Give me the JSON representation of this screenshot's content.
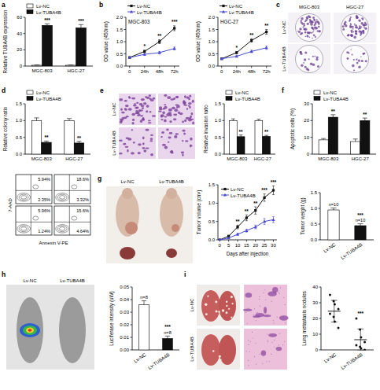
{
  "chart_data": [
    {
      "panel": "a",
      "type": "bar",
      "y_label": "Relative TUBA4B expression",
      "categories": [
        "MGC-803",
        "HGC-27"
      ],
      "series": [
        {
          "name": "Lv-NC",
          "color": "#ffffff",
          "values": [
            1,
            1
          ],
          "errors": [
            0.3,
            0.3
          ]
        },
        {
          "name": "Lv-TUBA4B",
          "color": "#111111",
          "values": [
            50,
            47
          ],
          "errors": [
            2,
            4
          ]
        }
      ],
      "ylim": [
        0,
        60
      ],
      "yticks": [
        0,
        20,
        40,
        60
      ],
      "annotations": [
        "***",
        "***"
      ],
      "legend": "top"
    },
    {
      "panel": "b",
      "type": "line",
      "title": "MGC-803",
      "y_label": "OD value (450nm)",
      "x": [
        0,
        24,
        48,
        72
      ],
      "xlim": [
        -6,
        80
      ],
      "xticks": [
        0,
        {
          "value": 24,
          "label": "24h"
        },
        {
          "value": 48,
          "label": "48h"
        },
        {
          "value": 72,
          "label": "72h"
        }
      ],
      "series": [
        {
          "name": "Lv-NC",
          "color": "#111111",
          "marker": "square",
          "values": [
            0.35,
            0.6,
            1.0,
            1.55
          ],
          "errors": [
            0.02,
            0.05,
            0.08,
            0.1
          ]
        },
        {
          "name": "Lv-TUBA4B",
          "color": "#4b4bd0",
          "marker": "triangle",
          "values": [
            0.35,
            0.48,
            0.55,
            0.72
          ],
          "errors": [
            0.02,
            0.04,
            0.05,
            0.06
          ]
        }
      ],
      "ylim": [
        0,
        2
      ],
      "yticks": [
        {
          "value": 0,
          "label": "0.0"
        },
        {
          "value": 0.5,
          "label": "0.5"
        },
        {
          "value": 1,
          "label": "1.0"
        },
        {
          "value": 1.5,
          "label": "1.5"
        },
        {
          "value": 2,
          "label": "2.0"
        }
      ],
      "annotations": [
        null,
        "*",
        "**",
        "***"
      ],
      "legend": "top"
    },
    {
      "type": "line",
      "title": "HGC-27",
      "y_label": "OD value (450nm)",
      "x": [
        0,
        24,
        48,
        72
      ],
      "xlim": [
        -6,
        80
      ],
      "xticks": [
        0,
        {
          "value": 24,
          "label": "24h"
        },
        {
          "value": 48,
          "label": "48h"
        },
        {
          "value": 72,
          "label": "72h"
        }
      ],
      "series": [
        {
          "name": "Lv-NC",
          "color": "#111111",
          "marker": "square",
          "values": [
            0.3,
            0.55,
            1.05,
            1.4
          ],
          "errors": [
            0.02,
            0.05,
            0.07,
            0.1
          ]
        },
        {
          "name": "Lv-TUBA4B",
          "color": "#4b4bd0",
          "marker": "triangle",
          "values": [
            0.3,
            0.4,
            0.6,
            0.75
          ],
          "errors": [
            0.02,
            0.03,
            0.05,
            0.07
          ]
        }
      ],
      "ylim": [
        0,
        2
      ],
      "yticks": [
        {
          "value": 0,
          "label": "0.0"
        },
        {
          "value": 0.5,
          "label": "0.5"
        },
        {
          "value": 1,
          "label": "1.0"
        },
        {
          "value": 1.5,
          "label": "1.5"
        },
        {
          "value": 2,
          "label": "2.0"
        }
      ],
      "annotations": [
        null,
        "*",
        "**",
        "**"
      ],
      "legend": "top"
    },
    {
      "panel": "d",
      "type": "bar",
      "y_label": "Relative colony ratio",
      "categories": [
        "MGC-803",
        "HGC-27"
      ],
      "series": [
        {
          "name": "Lv-NC",
          "color": "#ffffff",
          "values": [
            1,
            1
          ],
          "errors": [
            0.08,
            0.06
          ]
        },
        {
          "name": "Lv-TUBA4B",
          "color": "#111111",
          "values": [
            0.35,
            0.33
          ],
          "errors": [
            0.04,
            0.05
          ]
        }
      ],
      "ylim": [
        0,
        1.5
      ],
      "yticks": [
        {
          "value": 0,
          "label": "0.0"
        },
        {
          "value": 0.5,
          "label": "0.5"
        },
        {
          "value": 1,
          "label": "1.0"
        },
        {
          "value": 1.5,
          "label": "1.5"
        }
      ],
      "annotations": [
        "**",
        "**"
      ],
      "legend": "top"
    },
    {
      "type": "bar",
      "y_label": "Relative invasion ratio",
      "categories": [
        "MGC-803",
        "HGC-27"
      ],
      "series": [
        {
          "name": "Lv-NC",
          "color": "#ffffff",
          "values": [
            1,
            1
          ],
          "errors": [
            0.05,
            0.04
          ]
        },
        {
          "name": "Lv-TUBA4B",
          "color": "#111111",
          "values": [
            0.52,
            0.53
          ],
          "errors": [
            0.05,
            0.03
          ]
        }
      ],
      "ylim": [
        0,
        1.5
      ],
      "yticks": [
        {
          "value": 0,
          "label": "0.0"
        },
        {
          "value": 0.5,
          "label": "0.5"
        },
        {
          "value": 1,
          "label": "1.0"
        },
        {
          "value": 1.5,
          "label": "1.5"
        }
      ],
      "annotations": [
        "**",
        "**"
      ],
      "legend": "top"
    },
    {
      "panel": "f",
      "type": "bar",
      "y_label": "Apoptotic cells (%)",
      "categories": [
        "MGC-803",
        "HGC-27"
      ],
      "series": [
        {
          "name": "Lv-NC",
          "color": "#ffffff",
          "values": [
            8.5,
            7.5
          ],
          "errors": [
            0.8,
            1.5
          ]
        },
        {
          "name": "Lv-TUBA4B",
          "color": "#111111",
          "values": [
            22,
            20
          ],
          "errors": [
            1.5,
            1.5
          ]
        }
      ],
      "ylim": [
        0,
        30
      ],
      "yticks": [
        0,
        10,
        20,
        30
      ],
      "annotations": [
        "**",
        "**"
      ],
      "legend": "top"
    },
    {
      "type": "line",
      "y_label": "Tumor volume (cm³)",
      "x_label": "Days after injection",
      "x": [
        0,
        5,
        10,
        15,
        20,
        25,
        30
      ],
      "xlim": [
        -1,
        32
      ],
      "xticks": [
        0,
        5,
        10,
        15,
        20,
        25,
        30
      ],
      "series": [
        {
          "name": "Lv-NC",
          "color": "#111111",
          "marker": "square",
          "values": [
            0,
            0.1,
            0.35,
            0.6,
            0.8,
            1.15,
            1.35
          ],
          "errors": [
            0,
            0.02,
            0.05,
            0.08,
            0.1,
            0.1,
            0.12
          ]
        },
        {
          "name": "Lv-TUBA4B",
          "color": "#4b4bd0",
          "marker": "triangle",
          "values": [
            0,
            0.05,
            0.15,
            0.25,
            0.35,
            0.5,
            0.55
          ],
          "errors": [
            0,
            0.01,
            0.03,
            0.04,
            0.05,
            0.08,
            0.08
          ]
        }
      ],
      "ylim": [
        0,
        1.5
      ],
      "yticks": [
        {
          "value": 0,
          "label": "0.0"
        },
        {
          "value": 0.5,
          "label": "0.5"
        },
        {
          "value": 1,
          "label": "1.0"
        },
        {
          "value": 1.5,
          "label": "1.5"
        }
      ],
      "annotations": [
        null,
        null,
        "**",
        "**",
        "**",
        "***",
        "***"
      ],
      "legend": "top-left"
    },
    {
      "type": "bar",
      "y_label": "Tumor weight (g)",
      "categories": [
        "Lv-NC",
        "Lv-TUBA4B"
      ],
      "values": [
        0.95,
        0.45
      ],
      "errors": [
        0.06,
        0.06
      ],
      "colors": [
        "#ffffff",
        "#111111"
      ],
      "sample_sizes": [
        "n=10",
        "n=10"
      ],
      "annotations": [
        null,
        "***"
      ],
      "ylim": [
        0,
        1.5
      ],
      "yticks": [
        {
          "value": 0,
          "label": "0.0"
        },
        {
          "value": 0.5,
          "label": "0.5"
        },
        {
          "value": 1,
          "label": "1.0"
        },
        {
          "value": 1.5,
          "label": "1.5"
        }
      ]
    },
    {
      "type": "bar",
      "y_label": "Luciferase intensity (uW)",
      "categories": [
        "Lv-NC",
        "Lv-TUBA4B"
      ],
      "values": [
        0.036,
        0.009
      ],
      "errors": [
        0.003,
        0.002
      ],
      "colors": [
        "#ffffff",
        "#111111"
      ],
      "sample_sizes": [
        "n=8",
        "n=8"
      ],
      "annotations": [
        null,
        "***"
      ],
      "ylim": [
        0,
        0.05
      ],
      "yticks": [
        {
          "value": 0,
          "label": "0.00"
        },
        {
          "value": 0.01,
          "label": "0.01"
        },
        {
          "value": 0.02,
          "label": "0.02"
        },
        {
          "value": 0.03,
          "label": "0.03"
        },
        {
          "value": 0.04,
          "label": "0.04"
        },
        {
          "value": 0.05,
          "label": "0.05"
        }
      ]
    },
    {
      "type": "scatter",
      "y_label": "Lung metastasis nodules",
      "categories": [
        "Lv-NC",
        "Lv-TUBA4B"
      ],
      "color": "#111111",
      "marker": "circle",
      "points": [
        [
          35,
          31,
          29,
          26,
          23,
          21,
          18,
          14
        ],
        [
          20,
          13,
          8,
          5,
          3,
          2,
          1,
          0
        ]
      ],
      "means": [
        24.6,
        6.5
      ],
      "errors": [
        6.9,
        6.8
      ],
      "annotations": [
        null,
        "***"
      ],
      "ylim": [
        0,
        40
      ],
      "yticks": [
        0,
        10,
        20,
        30,
        40
      ]
    }
  ],
  "colony_images": {
    "panel": "c",
    "columns": [
      "MGC-803",
      "HGC-27"
    ],
    "rows": [
      "Lv-NC",
      "Lv-TUBA4B"
    ]
  },
  "invasion_images": {
    "panel": "e",
    "rows": [
      "Lv-NC",
      "Lv-TUBA4B"
    ]
  },
  "flow_cytometry": {
    "y_label": "7-AAD",
    "x_label": "Annexin V-PE",
    "plots": [
      [
        "5.94%",
        "2.35%"
      ],
      [
        "18.6%",
        "3.32%"
      ],
      [
        "5.96%",
        "1.24%"
      ],
      [
        "15.6%",
        "4.64%"
      ]
    ]
  },
  "xenograft_photo": {
    "panel": "g",
    "labels": [
      "Lv-NC",
      "Lv-TUBA4B"
    ]
  },
  "bioluminescence_image": {
    "panel": "h",
    "labels": [
      "Lv-NC",
      "Lv-TUBA4B"
    ]
  },
  "lung_images": {
    "panel": "i",
    "rows": [
      "Lv-NC",
      "Lv-TUBA4B"
    ]
  }
}
